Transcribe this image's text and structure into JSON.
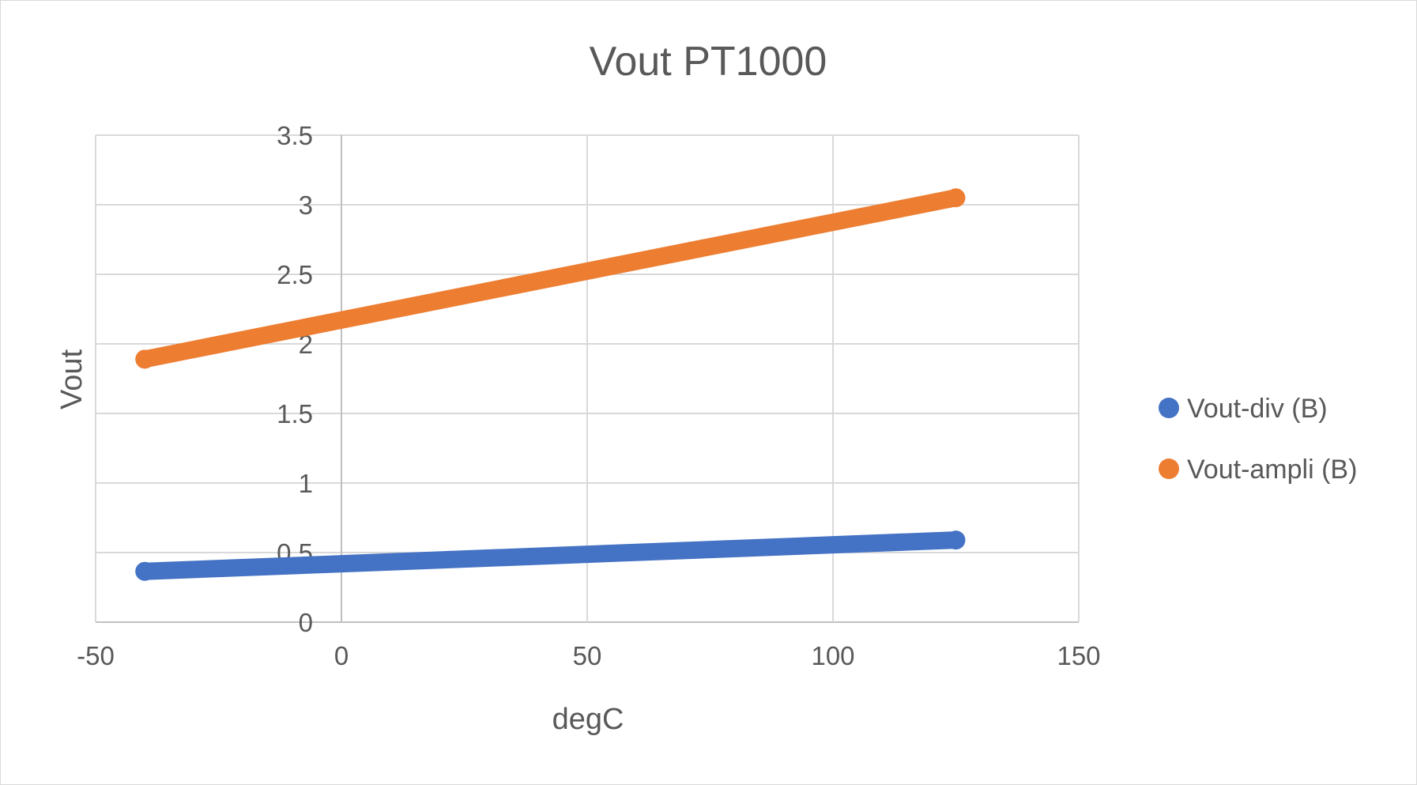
{
  "chart_data": {
    "type": "scatter",
    "title": "Vout PT1000",
    "xlabel": "degC",
    "ylabel": "Vout",
    "xlim": [
      -50,
      150
    ],
    "ylim": [
      0,
      3.5
    ],
    "xticks": [
      "-50",
      "0",
      "50",
      "100",
      "150"
    ],
    "yticks": [
      "0",
      "0.5",
      "1",
      "1.5",
      "2",
      "2.5",
      "3",
      "3.5"
    ],
    "xtick_values": [
      -50,
      0,
      50,
      100,
      150
    ],
    "ytick_values": [
      0,
      0.5,
      1,
      1.5,
      2,
      2.5,
      3,
      3.5
    ],
    "grid": true,
    "legend_position": "right",
    "series": [
      {
        "name": "Vout-div (B)",
        "color": "#4472C4",
        "x": [
          -40,
          125
        ],
        "y": [
          0.365,
          0.59
        ]
      },
      {
        "name": "Vout-ampli (B)",
        "color": "#ED7D31",
        "x": [
          -40,
          125
        ],
        "y": [
          1.89,
          3.05
        ]
      }
    ]
  }
}
